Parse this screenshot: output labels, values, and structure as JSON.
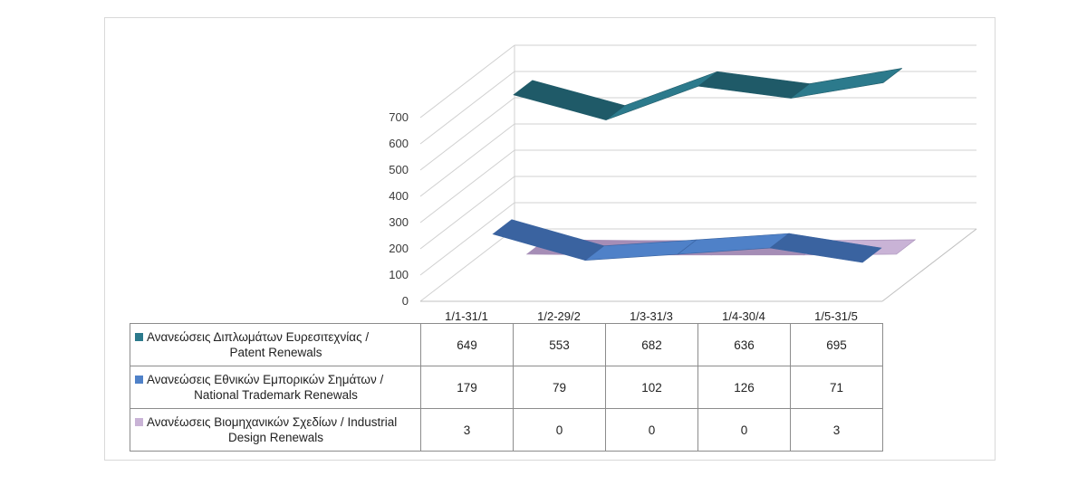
{
  "chart_data": {
    "type": "line",
    "subtype": "3d-line-with-data-table",
    "categories": [
      "1/1-31/1",
      "1/2-29/2",
      "1/3-31/3",
      "1/4-30/4",
      "1/5-31/5"
    ],
    "series": [
      {
        "name_line1": "Ανανεώσεις Διπλωμάτων Ευρεσιτεχνίας  /",
        "name_line2": "Patent Renewals",
        "color": "#2c7a8c",
        "side_color": "#1f5a68",
        "values": [
          649,
          553,
          682,
          636,
          695
        ]
      },
      {
        "name_line1": "Ανανεώσεις Εθνικών Εμπορικών Σημάτων /",
        "name_line2": "National Trademark Renewals",
        "color": "#4f81c8",
        "side_color": "#3a63a0",
        "values": [
          179,
          79,
          102,
          126,
          71
        ]
      },
      {
        "name_line1": "Ανανέωσεις Βιομηχανικών Σχεδίων / Industrial",
        "name_line2": "Design Renewals",
        "color": "#c9b3d6",
        "side_color": "#a58db6",
        "values": [
          3,
          0,
          0,
          0,
          3
        ]
      }
    ],
    "y_ticks": [
      "0",
      "100",
      "200",
      "300",
      "400",
      "500",
      "600",
      "700"
    ],
    "ylim": [
      0,
      700
    ],
    "grid": true,
    "legend": "data-table-below"
  }
}
